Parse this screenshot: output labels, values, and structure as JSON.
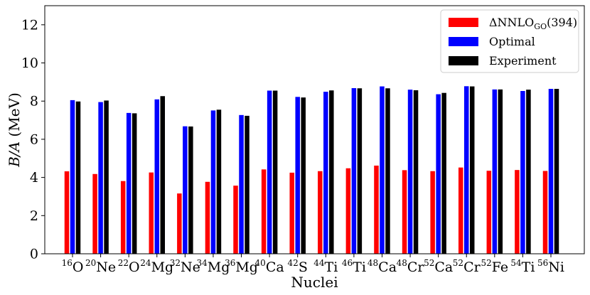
{
  "chart_data": {
    "type": "bar",
    "categories": [
      {
        "mass": "16",
        "symbol": "O"
      },
      {
        "mass": "20",
        "symbol": "Ne"
      },
      {
        "mass": "22",
        "symbol": "O"
      },
      {
        "mass": "24",
        "symbol": "Mg"
      },
      {
        "mass": "32",
        "symbol": "Ne"
      },
      {
        "mass": "34",
        "symbol": "Mg"
      },
      {
        "mass": "36",
        "symbol": "Mg"
      },
      {
        "mass": "40",
        "symbol": "Ca"
      },
      {
        "mass": "42",
        "symbol": "S"
      },
      {
        "mass": "44",
        "symbol": "Ti"
      },
      {
        "mass": "46",
        "symbol": "Ti"
      },
      {
        "mass": "48",
        "symbol": "Ca"
      },
      {
        "mass": "48",
        "symbol": "Cr"
      },
      {
        "mass": "52",
        "symbol": "Ca"
      },
      {
        "mass": "52",
        "symbol": "Cr"
      },
      {
        "mass": "52",
        "symbol": "Fe"
      },
      {
        "mass": "54",
        "symbol": "Ti"
      },
      {
        "mass": "56",
        "symbol": "Ni"
      }
    ],
    "series": [
      {
        "name_main": "ΔNNLO",
        "name_sub": "GO",
        "name_tail": "(394)",
        "color": "#ff0000",
        "values": [
          4.32,
          4.18,
          3.81,
          4.26,
          3.16,
          3.77,
          3.57,
          4.42,
          4.25,
          4.33,
          4.48,
          4.62,
          4.38,
          4.33,
          4.52,
          4.35,
          4.39,
          4.34
        ]
      },
      {
        "name": "Optimal",
        "color": "#0000ff",
        "values": [
          8.05,
          7.95,
          7.38,
          8.09,
          6.68,
          7.51,
          7.27,
          8.55,
          8.22,
          8.49,
          8.68,
          8.77,
          8.6,
          8.36,
          8.78,
          8.61,
          8.53,
          8.64
        ]
      },
      {
        "name": "Experiment",
        "color": "#000000",
        "values": [
          7.98,
          8.03,
          7.36,
          8.26,
          6.67,
          7.55,
          7.23,
          8.55,
          8.19,
          8.56,
          8.67,
          8.67,
          8.57,
          8.43,
          8.77,
          8.61,
          8.6,
          8.64
        ]
      }
    ],
    "ylabel": "B/A",
    "ylabel_unit": "(MeV)",
    "xlabel": "Nuclei",
    "ylim": [
      0,
      13
    ],
    "yticks": [
      0,
      2,
      4,
      6,
      8,
      10,
      12
    ],
    "grid": false,
    "legend_position": "top-right"
  }
}
